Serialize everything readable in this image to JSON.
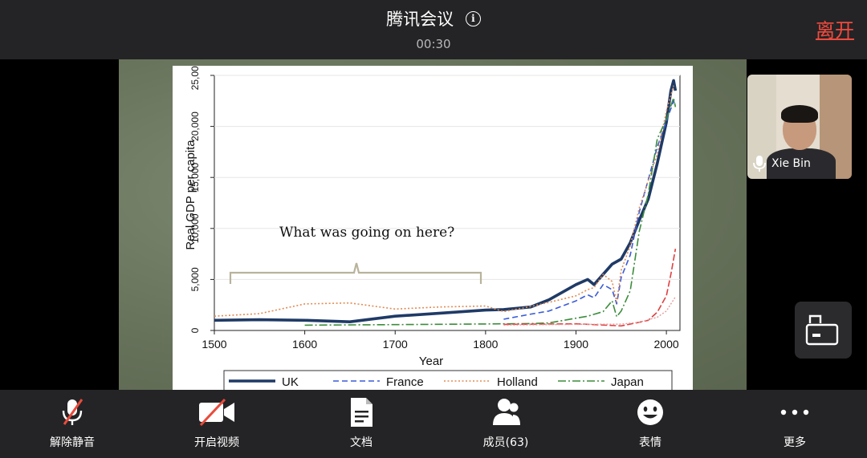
{
  "header": {
    "title": "腾讯会议",
    "timer": "00:30",
    "leave_label": "离开"
  },
  "participant": {
    "name": "Xie Bin"
  },
  "toolbar": {
    "items": [
      {
        "label": "解除静音",
        "icon": "mic-muted-icon"
      },
      {
        "label": "开启视频",
        "icon": "video-off-icon"
      },
      {
        "label": "文档",
        "icon": "document-icon"
      },
      {
        "label": "成员(63)",
        "icon": "members-icon"
      },
      {
        "label": "表情",
        "icon": "emoji-icon"
      },
      {
        "label": "更多",
        "icon": "more-icon"
      }
    ]
  },
  "colors": {
    "topbar": "#242426",
    "leave": "#f04a3e",
    "uk": "#1f3a66",
    "france": "#3a5bd9",
    "holland": "#e08a52",
    "japan": "#3c8c3c",
    "extra_red": "#e04040"
  },
  "chart_data": {
    "type": "line",
    "xlabel": "Year",
    "ylabel": "Real GDP per capita",
    "xlim": [
      1500,
      2015
    ],
    "ylim": [
      0,
      25000
    ],
    "xticks": [
      1500,
      1600,
      1700,
      1800,
      1900,
      2000
    ],
    "yticks": [
      0,
      5000,
      10000,
      15000,
      20000,
      25000
    ],
    "ytick_labels": [
      "0",
      "5,000",
      "10,000",
      "15,000",
      "20,000",
      "25,000"
    ],
    "annotation": "What was going on here?",
    "legend": [
      {
        "name": "UK",
        "style": "solid"
      },
      {
        "name": "France",
        "style": "dashed"
      },
      {
        "name": "Holland",
        "style": "dotted"
      },
      {
        "name": "Japan",
        "style": "dashdot"
      }
    ],
    "series": [
      {
        "name": "UK",
        "x": [
          1500,
          1550,
          1600,
          1650,
          1700,
          1750,
          1800,
          1820,
          1850,
          1870,
          1900,
          1913,
          1920,
          1930,
          1940,
          1950,
          1960,
          1970,
          1980,
          1990,
          2000,
          2005,
          2008,
          2010
        ],
        "y": [
          1000,
          1050,
          1000,
          850,
          1400,
          1700,
          2000,
          2050,
          2300,
          3000,
          4500,
          5000,
          4500,
          5500,
          6500,
          7000,
          8600,
          10800,
          12900,
          16400,
          20400,
          23500,
          24500,
          23500
        ]
      },
      {
        "name": "France",
        "x": [
          1820,
          1850,
          1870,
          1900,
          1913,
          1920,
          1930,
          1940,
          1945,
          1950,
          1960,
          1970,
          1980,
          1990,
          2000,
          2008,
          2010
        ],
        "y": [
          1100,
          1600,
          1900,
          2900,
          3500,
          3200,
          4500,
          4000,
          2600,
          5200,
          7400,
          11600,
          14800,
          18000,
          20500,
          22500,
          22000
        ]
      },
      {
        "name": "Holland",
        "x": [
          1500,
          1550,
          1600,
          1650,
          1700,
          1750,
          1800,
          1820,
          1850,
          1870,
          1900,
          1913,
          1920,
          1930,
          1940,
          1945,
          1950,
          1960,
          1970,
          1980,
          1990,
          2000,
          2008
        ],
        "y": [
          1400,
          1650,
          2600,
          2700,
          2100,
          2300,
          2400,
          1850,
          2350,
          2750,
          3400,
          4000,
          4200,
          5500,
          4800,
          2800,
          5900,
          8300,
          12000,
          14700,
          17300,
          21500,
          24000
        ]
      },
      {
        "name": "Japan",
        "x": [
          1600,
          1700,
          1800,
          1850,
          1870,
          1900,
          1913,
          1930,
          1940,
          1945,
          1950,
          1960,
          1970,
          1980,
          1990,
          2000,
          2008,
          2010
        ],
        "y": [
          520,
          570,
          640,
          680,
          740,
          1200,
          1400,
          1850,
          2900,
          1350,
          1900,
          3900,
          9700,
          13400,
          18800,
          20700,
          22800,
          21900
        ]
      },
      {
        "name": "",
        "x": [
          1820,
          1900,
          1950,
          1970,
          1980,
          1990,
          2000,
          2005,
          2010
        ],
        "y": [
          600,
          650,
          450,
          800,
          1000,
          1800,
          3400,
          5500,
          8000
        ]
      },
      {
        "name": "",
        "x": [
          1820,
          1900,
          1950,
          1970,
          1990,
          2000,
          2010
        ],
        "y": [
          530,
          600,
          620,
          800,
          1300,
          1900,
          3300
        ]
      }
    ]
  }
}
